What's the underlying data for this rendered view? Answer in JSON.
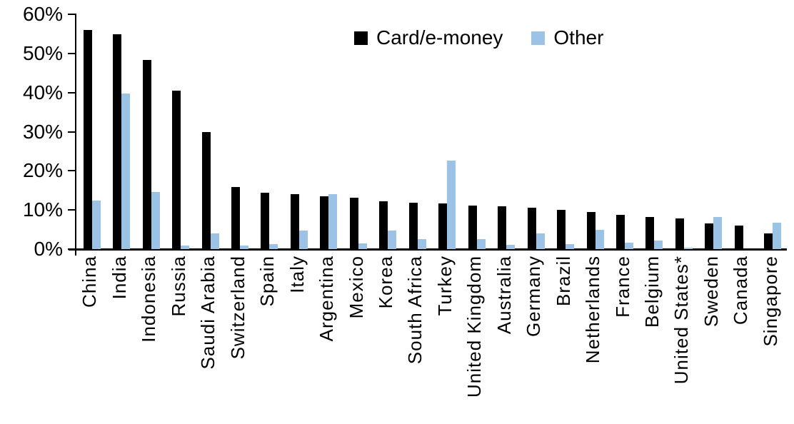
{
  "chart_data": {
    "type": "bar",
    "title": "",
    "xlabel": "",
    "ylabel": "",
    "ylim": [
      0,
      60
    ],
    "ytick_labels": [
      "0%",
      "10%",
      "20%",
      "30%",
      "40%",
      "50%",
      "60%"
    ],
    "ytick_values": [
      0,
      10,
      20,
      30,
      40,
      50,
      60
    ],
    "grid": false,
    "legend_position": "top-center",
    "legend": [
      {
        "name": "Card/e-money",
        "color": "#000000"
      },
      {
        "name": "Other",
        "color": "#9CC2E5"
      }
    ],
    "categories": [
      "China",
      "India",
      "Indonesia",
      "Russia",
      "Saudi Arabia",
      "Switzerland",
      "Spain",
      "Italy",
      "Argentina",
      "Mexico",
      "Korea",
      "South Africa",
      "Turkey",
      "United Kingdom",
      "Australia",
      "Germany",
      "Brazil",
      "Netherlands",
      "France",
      "Belgium",
      "United States*",
      "Sweden",
      "Canada",
      "Singapore"
    ],
    "series": [
      {
        "name": "Card/e-money",
        "color": "#000000",
        "values": [
          56.1,
          55.0,
          48.3,
          40.6,
          29.9,
          15.8,
          14.4,
          14.1,
          13.5,
          13.1,
          12.3,
          11.9,
          11.7,
          11.2,
          10.9,
          10.6,
          10.0,
          9.4,
          8.7,
          8.2,
          7.9,
          6.6,
          6.1,
          4.0
        ]
      },
      {
        "name": "Other",
        "color": "#9CC2E5",
        "values": [
          12.4,
          39.7,
          14.6,
          1.0,
          4.0,
          0.9,
          1.2,
          4.8,
          14.0,
          1.4,
          4.7,
          2.5,
          22.6,
          2.5,
          1.1,
          4.0,
          1.3,
          4.9,
          1.6,
          2.1,
          0.3,
          8.2,
          0,
          6.8
        ]
      }
    ]
  }
}
